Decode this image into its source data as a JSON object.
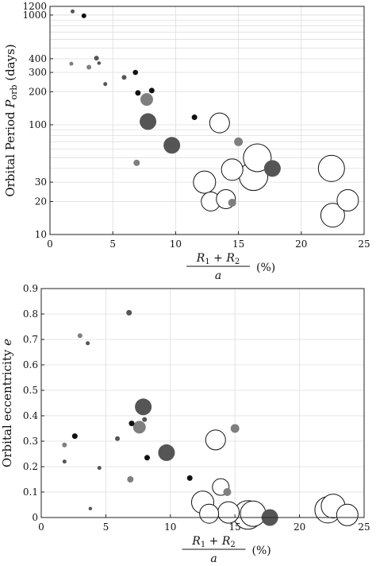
{
  "chart_data": [
    {
      "type": "scatter",
      "xlabel": {
        "num_a": "R",
        "num_a_sub": "1",
        "num_plus": " + R",
        "num_b_sub": "2",
        "den": "a",
        "unit": "(%)"
      },
      "ylabel": {
        "main": "Orbital Period ",
        "sym": "P",
        "sub": "orb",
        "unit": " (days)"
      },
      "xlim": [
        0,
        25
      ],
      "ylim": [
        10,
        1200
      ],
      "yscale": "log",
      "xticks": [
        "0",
        "5",
        "10",
        "15",
        "20",
        "25"
      ],
      "xtick_values": [
        0,
        5,
        10,
        15,
        20,
        25
      ],
      "yticks": [
        "10",
        "20",
        "30",
        "100",
        "200",
        "300",
        "400",
        "1000",
        "1200"
      ],
      "ytick_values": [
        10,
        20,
        30,
        100,
        200,
        300,
        400,
        1000,
        1200
      ],
      "grid": true,
      "colors": {
        "black": "#111111",
        "dark": "#555555",
        "gray": "#7f7f7f",
        "open": "#ffffff",
        "edge": "#111111"
      },
      "points": [
        {
          "x": 1.8,
          "y": 1080,
          "s": 4,
          "c": "dark"
        },
        {
          "x": 2.7,
          "y": 985,
          "s": 5,
          "c": "black"
        },
        {
          "x": 1.7,
          "y": 360,
          "s": 4,
          "c": "gray"
        },
        {
          "x": 3.1,
          "y": 335,
          "s": 5,
          "c": "gray"
        },
        {
          "x": 3.7,
          "y": 405,
          "s": 5,
          "c": "dark"
        },
        {
          "x": 3.9,
          "y": 365,
          "s": 3.5,
          "c": "dark"
        },
        {
          "x": 4.4,
          "y": 235,
          "s": 4,
          "c": "dark"
        },
        {
          "x": 5.9,
          "y": 270,
          "s": 5,
          "c": "dark"
        },
        {
          "x": 6.8,
          "y": 300,
          "s": 5.5,
          "c": "black"
        },
        {
          "x": 7.0,
          "y": 195,
          "s": 6,
          "c": "black"
        },
        {
          "x": 8.1,
          "y": 205,
          "s": 6,
          "c": "black"
        },
        {
          "x": 7.7,
          "y": 170,
          "s": 16,
          "c": "gray"
        },
        {
          "x": 7.8,
          "y": 107,
          "s": 21,
          "c": "dark"
        },
        {
          "x": 6.9,
          "y": 45,
          "s": 8,
          "c": "gray"
        },
        {
          "x": 9.7,
          "y": 65,
          "s": 21,
          "c": "dark"
        },
        {
          "x": 11.5,
          "y": 117,
          "s": 6,
          "c": "black"
        },
        {
          "x": 13.5,
          "y": 104,
          "s": 25,
          "c": "open"
        },
        {
          "x": 15.0,
          "y": 70,
          "s": 11,
          "c": "gray"
        },
        {
          "x": 16.5,
          "y": 50,
          "s": 35,
          "c": "open"
        },
        {
          "x": 17.7,
          "y": 40,
          "s": 21,
          "c": "dark"
        },
        {
          "x": 12.3,
          "y": 30,
          "s": 28,
          "c": "open"
        },
        {
          "x": 12.8,
          "y": 20,
          "s": 24,
          "c": "open"
        },
        {
          "x": 14.0,
          "y": 21,
          "s": 24,
          "c": "open"
        },
        {
          "x": 14.5,
          "y": 19.5,
          "s": 10,
          "c": "gray"
        },
        {
          "x": 14.5,
          "y": 39,
          "s": 27,
          "c": "open"
        },
        {
          "x": 16.2,
          "y": 34,
          "s": 36,
          "c": "open"
        },
        {
          "x": 22.4,
          "y": 40,
          "s": 33,
          "c": "open"
        },
        {
          "x": 23.7,
          "y": 20.5,
          "s": 27,
          "c": "open"
        },
        {
          "x": 22.5,
          "y": 15,
          "s": 30,
          "c": "open"
        }
      ]
    },
    {
      "type": "scatter",
      "xlabel": {
        "num_a": "R",
        "num_a_sub": "1",
        "num_plus": " + R",
        "num_b_sub": "2",
        "den": "a",
        "unit": "(%)"
      },
      "ylabel": {
        "main": "Orbital eccentricity ",
        "sym": "e"
      },
      "xlim": [
        0,
        25
      ],
      "ylim": [
        0,
        0.9
      ],
      "xticks": [
        "0",
        "5",
        "10",
        "15",
        "20",
        "25"
      ],
      "xtick_values": [
        0,
        5,
        10,
        15,
        20,
        25
      ],
      "yticks": [
        "0",
        "0.1",
        "0.2",
        "0.3",
        "0.4",
        "0.5",
        "0.6",
        "0.7",
        "0.8",
        "0.9"
      ],
      "ytick_values": [
        0,
        0.1,
        0.2,
        0.3,
        0.4,
        0.5,
        0.6,
        0.7,
        0.8,
        0.9
      ],
      "grid": true,
      "colors": {
        "black": "#111111",
        "dark": "#555555",
        "gray": "#7f7f7f",
        "open": "#ffffff",
        "edge": "#111111"
      },
      "points": [
        {
          "x": 6.8,
          "y": 0.805,
          "s": 6,
          "c": "dark"
        },
        {
          "x": 3.0,
          "y": 0.715,
          "s": 5,
          "c": "gray"
        },
        {
          "x": 3.6,
          "y": 0.685,
          "s": 4,
          "c": "dark"
        },
        {
          "x": 7.9,
          "y": 0.435,
          "s": 21,
          "c": "dark"
        },
        {
          "x": 7.0,
          "y": 0.37,
          "s": 6,
          "c": "black"
        },
        {
          "x": 7.6,
          "y": 0.355,
          "s": 16,
          "c": "gray"
        },
        {
          "x": 8.0,
          "y": 0.385,
          "s": 5,
          "c": "dark"
        },
        {
          "x": 2.6,
          "y": 0.32,
          "s": 6,
          "c": "black"
        },
        {
          "x": 1.8,
          "y": 0.285,
          "s": 5,
          "c": "gray"
        },
        {
          "x": 5.9,
          "y": 0.31,
          "s": 5,
          "c": "dark"
        },
        {
          "x": 9.7,
          "y": 0.255,
          "s": 21,
          "c": "dark"
        },
        {
          "x": 8.2,
          "y": 0.235,
          "s": 6,
          "c": "black"
        },
        {
          "x": 1.8,
          "y": 0.22,
          "s": 4,
          "c": "dark"
        },
        {
          "x": 4.5,
          "y": 0.195,
          "s": 4,
          "c": "dark"
        },
        {
          "x": 6.9,
          "y": 0.15,
          "s": 8,
          "c": "gray"
        },
        {
          "x": 11.5,
          "y": 0.155,
          "s": 6,
          "c": "black"
        },
        {
          "x": 13.5,
          "y": 0.305,
          "s": 25,
          "c": "open"
        },
        {
          "x": 15.0,
          "y": 0.35,
          "s": 11,
          "c": "gray"
        },
        {
          "x": 13.9,
          "y": 0.12,
          "s": 21,
          "c": "open"
        },
        {
          "x": 14.4,
          "y": 0.1,
          "s": 10,
          "c": "gray"
        },
        {
          "x": 3.8,
          "y": 0.035,
          "s": 3.5,
          "c": "dark"
        },
        {
          "x": 12.5,
          "y": 0.06,
          "s": 28,
          "c": "open"
        },
        {
          "x": 13.0,
          "y": 0.015,
          "s": 24,
          "c": "open"
        },
        {
          "x": 14.5,
          "y": 0.02,
          "s": 27,
          "c": "open"
        },
        {
          "x": 16.0,
          "y": 0.01,
          "s": 36,
          "c": "open"
        },
        {
          "x": 16.4,
          "y": 0.015,
          "s": 32,
          "c": "open"
        },
        {
          "x": 17.7,
          "y": 0.0,
          "s": 21,
          "c": "dark"
        },
        {
          "x": 22.2,
          "y": 0.03,
          "s": 33,
          "c": "open"
        },
        {
          "x": 22.6,
          "y": 0.045,
          "s": 30,
          "c": "open"
        },
        {
          "x": 23.7,
          "y": 0.01,
          "s": 27,
          "c": "open"
        }
      ]
    }
  ]
}
